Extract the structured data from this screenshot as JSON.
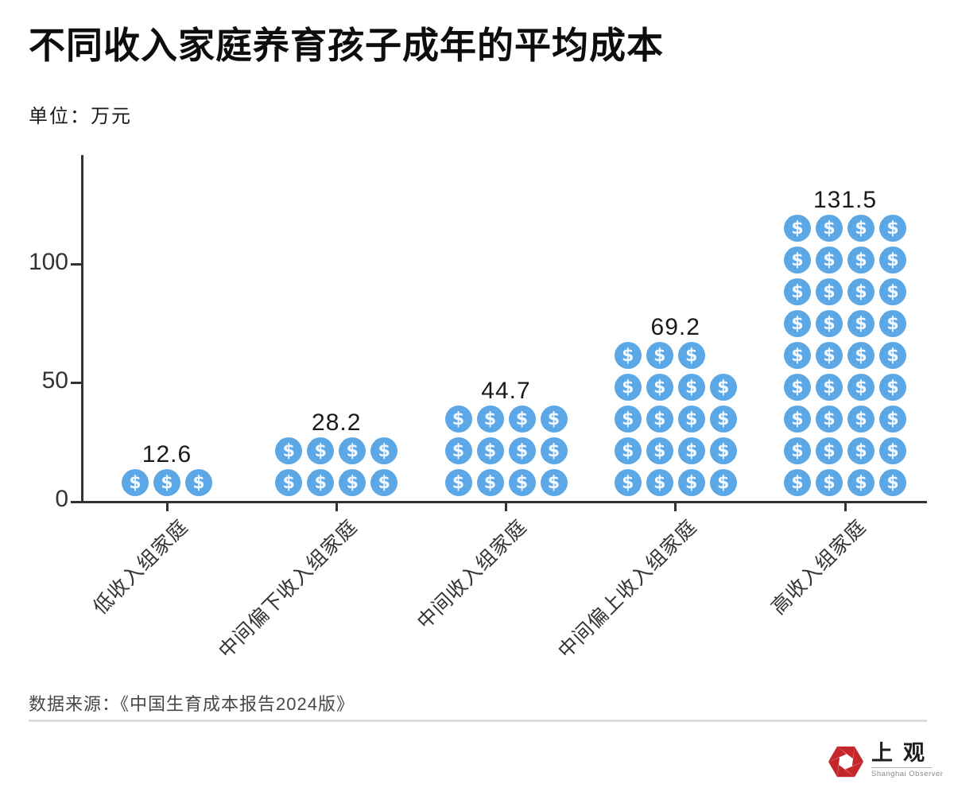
{
  "page": {
    "background": "#ffffff"
  },
  "header": {
    "title": "不同收入家庭养育孩子成年的平均成本",
    "unit_label": "单位：万元"
  },
  "chart_data": {
    "type": "bar",
    "subtype": "pictogram",
    "title": "不同收入家庭养育孩子成年的平均成本",
    "ylabel": "万元",
    "categories": [
      "低收入组家庭",
      "中间偏下收入组家庭",
      "中间收入组家庭",
      "中间偏上收入组家庭",
      "高收入组家庭"
    ],
    "values": [
      12.6,
      28.2,
      44.7,
      69.2,
      131.5
    ],
    "value_labels": [
      "12.6",
      "28.2",
      "44.7",
      "69.2",
      "131.5"
    ],
    "icon": "dollar-coin-icon",
    "icon_symbol": "$",
    "icon_counts": [
      3,
      8,
      12,
      19,
      36
    ],
    "icons_per_row": 4,
    "y_axis": {
      "ticks": [
        0,
        50,
        100
      ],
      "range": [
        0,
        147
      ],
      "grid": false
    },
    "legend": "none",
    "colors": {
      "coin": "#5CA8E6",
      "coin_symbol": "#f3faff",
      "axis": "#333333",
      "tick_text": "#333333",
      "value_text": "#1a1a1a"
    }
  },
  "footer": {
    "source": "数据来源：《中国生育成本报告2024版》",
    "logo": {
      "cn": "上观",
      "en": "Shanghai Observer",
      "red": "#C5262B"
    }
  }
}
